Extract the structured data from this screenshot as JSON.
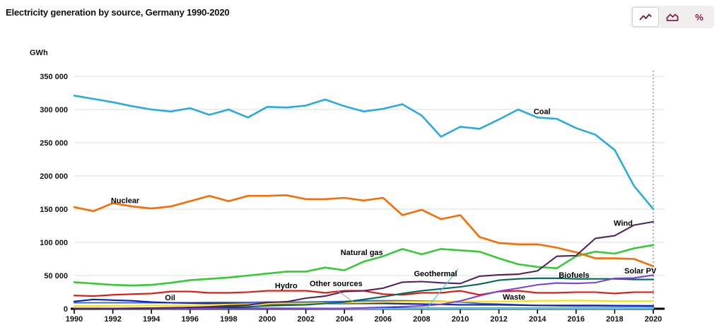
{
  "title": "Electricity generation by source, Germany 1990-2020",
  "toolbar": {
    "accent_color": "#7d2248",
    "buttons": [
      {
        "icon": "line-chart-icon",
        "selected": true
      },
      {
        "icon": "area-chart-icon",
        "selected": false
      },
      {
        "icon": "percent-icon",
        "label": "%",
        "selected": false
      }
    ]
  },
  "chart_data": {
    "type": "line",
    "title": "Electricity generation by source, Germany 1990-2020",
    "ylabel": "GWh",
    "xlabel": "",
    "x_start": 1990,
    "x_end": 2020,
    "x_ticks": [
      1990,
      1992,
      1994,
      1996,
      1998,
      2000,
      2002,
      2004,
      2006,
      2008,
      2010,
      2012,
      2014,
      2016,
      2018,
      2020
    ],
    "ylim": [
      0,
      350000
    ],
    "y_ticks": [
      0,
      50000,
      100000,
      150000,
      200000,
      250000,
      300000,
      350000
    ],
    "y_tick_labels": [
      "0",
      "50 000",
      "100 000",
      "150 000",
      "200 000",
      "250 000",
      "300 000",
      "350 000"
    ],
    "grid": true,
    "gridline_color": "#dddddd",
    "end_marker_year": 2020,
    "series": [
      {
        "name": "Geothermal",
        "color": "#45c8f0",
        "values": [
          0,
          0,
          0,
          0,
          0,
          0,
          0,
          0,
          0,
          0,
          0,
          0,
          0,
          0,
          0,
          0,
          0,
          0,
          100,
          100,
          100,
          100,
          100,
          100,
          100,
          150,
          150,
          150,
          150,
          200,
          200
        ]
      },
      {
        "name": "Other sources",
        "color": "#3f6ad8",
        "values": [
          9000,
          9000,
          9000,
          9000,
          9000,
          9000,
          9000,
          9500,
          9500,
          9500,
          10000,
          10000,
          10000,
          10500,
          11000,
          12000,
          12000,
          12000,
          11500,
          11000,
          10000,
          8000,
          7000,
          6000,
          5000,
          4500,
          4000,
          4000,
          3800,
          3600,
          3500
        ]
      },
      {
        "name": "Oil",
        "color": "#0b24b3",
        "values": [
          11000,
          14000,
          13000,
          12000,
          10000,
          9000,
          8500,
          8000,
          8000,
          7500,
          7000,
          7000,
          7500,
          8000,
          8000,
          8000,
          8000,
          7500,
          7000,
          6500,
          6000,
          6000,
          6000,
          5500,
          5000,
          5000,
          5000,
          5000,
          4800,
          4600,
          4500
        ]
      },
      {
        "name": "Waste",
        "color": "#ffdf00",
        "values": [
          4000,
          4000,
          4500,
          4500,
          5000,
          5000,
          5500,
          6000,
          6500,
          7000,
          7500,
          8000,
          8000,
          8500,
          9000,
          9500,
          10000,
          10500,
          10500,
          10500,
          11000,
          11000,
          11000,
          11500,
          12000,
          12000,
          12500,
          12000,
          11500,
          11500,
          11500
        ]
      },
      {
        "name": "Hydro",
        "color": "#e81309",
        "values": [
          20000,
          19000,
          21000,
          22000,
          23000,
          26000,
          26000,
          24000,
          24000,
          25000,
          27000,
          27000,
          27000,
          24000,
          27000,
          27000,
          22000,
          21000,
          24000,
          24000,
          27000,
          21000,
          26000,
          27000,
          24000,
          24000,
          25000,
          25000,
          23000,
          25000,
          25000
        ]
      },
      {
        "name": "Biofuels",
        "color": "#00695c",
        "values": [
          200,
          300,
          500,
          700,
          1000,
          1300,
          1700,
          2000,
          2500,
          3000,
          4500,
          5200,
          6000,
          8000,
          10000,
          14000,
          18000,
          23000,
          27000,
          30000,
          33000,
          37000,
          43000,
          45000,
          46000,
          46000,
          45000,
          45000,
          45000,
          44000,
          44000
        ]
      },
      {
        "name": "Solar PV",
        "color": "#7b42dd",
        "values": [
          0,
          0,
          0,
          0,
          0,
          0,
          0,
          0,
          0,
          0,
          0,
          100,
          200,
          300,
          600,
          1300,
          2200,
          3100,
          4400,
          6600,
          11700,
          19600,
          26400,
          31000,
          36100,
          38700,
          38100,
          39400,
          45800,
          46400,
          50700
        ]
      },
      {
        "name": "Natural gas",
        "color": "#33cc33",
        "values": [
          40000,
          38000,
          36000,
          35000,
          36000,
          39000,
          43000,
          45000,
          47000,
          50000,
          53000,
          56000,
          56000,
          62000,
          58000,
          71000,
          79000,
          90000,
          82000,
          90000,
          88000,
          86000,
          76000,
          67000,
          63000,
          61000,
          79000,
          86000,
          83000,
          91000,
          96000
        ]
      },
      {
        "name": "Nuclear",
        "color": "#f96c00",
        "values": [
          153000,
          147000,
          159000,
          154000,
          151000,
          154000,
          162000,
          170000,
          162000,
          170000,
          170000,
          171000,
          165000,
          165000,
          167000,
          163000,
          167000,
          141000,
          149000,
          135000,
          141000,
          108000,
          99000,
          97000,
          97000,
          92000,
          85000,
          76000,
          76000,
          75000,
          64000
        ]
      },
      {
        "name": "Wind",
        "color": "#55225f",
        "values": [
          100,
          200,
          300,
          600,
          1000,
          1500,
          2000,
          3000,
          4500,
          5500,
          9500,
          10500,
          16000,
          19000,
          26000,
          27000,
          31000,
          40000,
          41000,
          39000,
          38000,
          49000,
          51000,
          52000,
          57000,
          79000,
          80000,
          106000,
          110000,
          126000,
          131000
        ]
      },
      {
        "name": "Coal",
        "color": "#29abe2",
        "values": [
          321000,
          316000,
          311000,
          305000,
          300000,
          297000,
          302000,
          292000,
          300000,
          288000,
          304000,
          303000,
          306000,
          315000,
          305000,
          297000,
          301000,
          308000,
          291000,
          259000,
          274000,
          271000,
          285000,
          300000,
          288000,
          286000,
          272000,
          262000,
          239000,
          185000,
          150000
        ]
      }
    ],
    "annotations": [
      {
        "text": "Coal",
        "year": 2013.8,
        "value": 293000
      },
      {
        "text": "Nuclear",
        "year": 1991.9,
        "value": 159000
      },
      {
        "text": "Wind",
        "year": 2017.95,
        "value": 125000
      },
      {
        "text": "Natural gas",
        "year": 2003.8,
        "value": 81000
      },
      {
        "text": "Geothermal",
        "year": 2007.6,
        "value": 49000,
        "leader": {
          "from_year": 2009.9,
          "from_value": 60000,
          "to_year": 2008.3,
          "to_value": 2000,
          "color": "#45c8f0"
        }
      },
      {
        "text": "Hydro",
        "year": 2000.4,
        "value": 31000
      },
      {
        "text": "Other sources",
        "year": 2002.2,
        "value": 34000,
        "leader": {
          "from_year": 2003.6,
          "from_value": 28000,
          "to_year": 2004.5,
          "to_value": 9500,
          "color": "#aaaaaa"
        }
      },
      {
        "text": "Oil",
        "year": 1994.7,
        "value": 13000
      },
      {
        "text": "Waste",
        "year": 2012.2,
        "value": 14000
      },
      {
        "text": "Biofuels",
        "year": 2015.1,
        "value": 47000
      },
      {
        "text": "Solar PV",
        "year": 2018.5,
        "value": 53000
      }
    ]
  }
}
